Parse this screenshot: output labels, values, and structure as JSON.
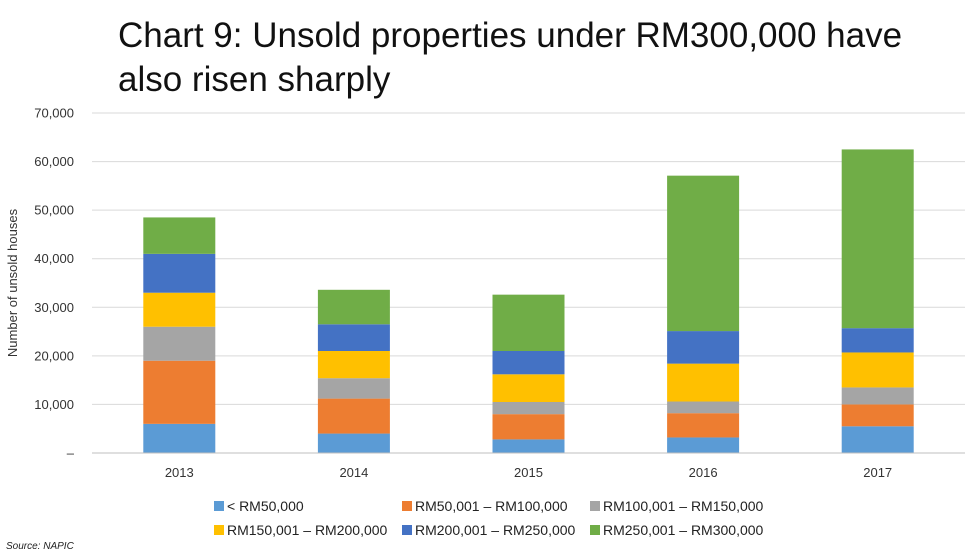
{
  "title": "Chart 9: Unsold properties under RM300,000 have also risen sharply",
  "source": "Source: NAPIC",
  "chart_data": {
    "type": "bar",
    "stacked": true,
    "categories": [
      "2013",
      "2014",
      "2015",
      "2016",
      "2017"
    ],
    "ylabel": "Number of unsold houses",
    "xlabel": "",
    "ylim": [
      0,
      70000
    ],
    "yticks": [
      0,
      10000,
      20000,
      30000,
      40000,
      50000,
      60000,
      70000
    ],
    "ytick_labels": [
      "–",
      "10,000",
      "20,000",
      "30,000",
      "40,000",
      "50,000",
      "60,000",
      "70,000"
    ],
    "grid": true,
    "legend_position": "bottom",
    "series": [
      {
        "name": "< RM50,000",
        "color": "#5B9BD5",
        "values": [
          6000,
          4000,
          2800,
          3200,
          5500
        ]
      },
      {
        "name": "RM50,001 – RM100,000",
        "color": "#ED7D31",
        "values": [
          13000,
          7200,
          5200,
          5000,
          4500
        ]
      },
      {
        "name": "RM100,001 – RM150,000",
        "color": "#A5A5A5",
        "values": [
          7000,
          4200,
          2500,
          2400,
          3500
        ]
      },
      {
        "name": "RM150,001 – RM200,000",
        "color": "#FFC000",
        "values": [
          7000,
          5600,
          5700,
          7800,
          7200
        ]
      },
      {
        "name": "RM200,001 – RM250,000",
        "color": "#4472C4",
        "values": [
          8000,
          5500,
          4800,
          6700,
          5000
        ]
      },
      {
        "name": "RM250,001 – RM300,000",
        "color": "#70AD47",
        "values": [
          7500,
          7100,
          11600,
          32000,
          36800
        ]
      }
    ]
  }
}
